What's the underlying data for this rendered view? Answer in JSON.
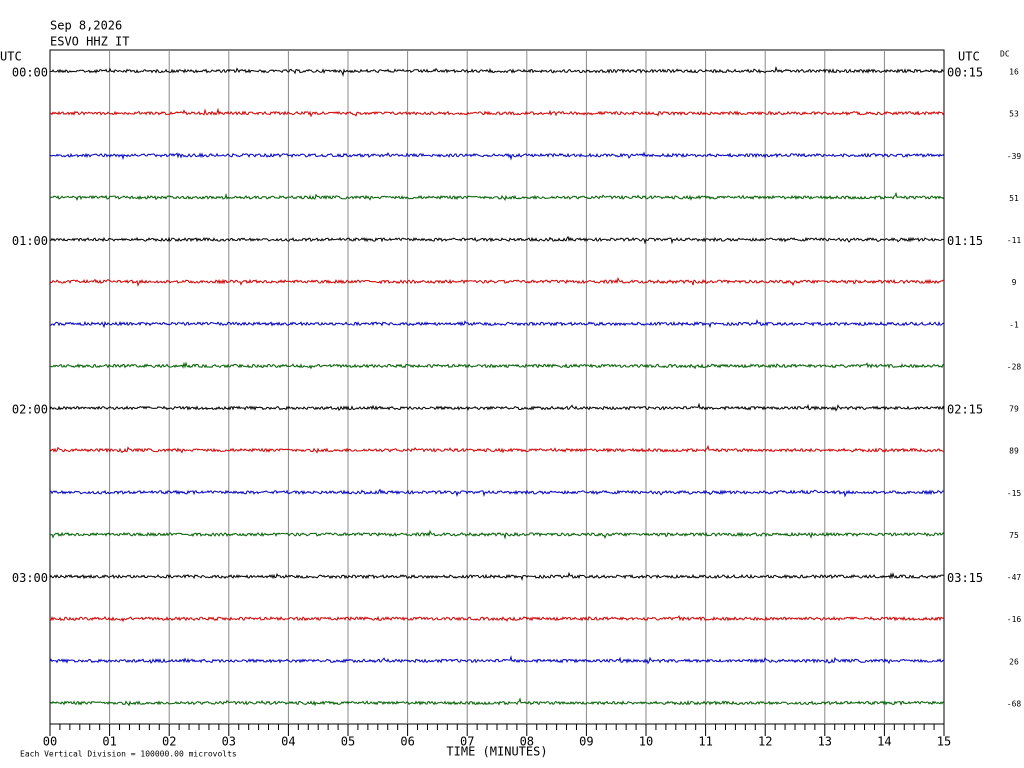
{
  "header": {
    "date": "Sep 8,2026",
    "station": "ESVO HHZ IT"
  },
  "left_axis": {
    "title": "UTC",
    "labels": [
      "00:00",
      "01:00",
      "02:00",
      "03:00"
    ]
  },
  "right_axis": {
    "title": "UTC",
    "labels": [
      "00:15",
      "01:15",
      "02:15",
      "03:15"
    ]
  },
  "dc": {
    "title": "DC",
    "values": [
      16,
      53,
      -39,
      51,
      -11,
      9,
      -1,
      -28,
      79,
      89,
      -15,
      75,
      -47,
      -16,
      26,
      -68
    ]
  },
  "trace_colors": [
    "#000000",
    "#d00000",
    "#0000c0",
    "#006000"
  ],
  "x_axis": {
    "ticks": [
      "00",
      "01",
      "02",
      "03",
      "04",
      "05",
      "06",
      "07",
      "08",
      "09",
      "10",
      "11",
      "12",
      "13",
      "14",
      "15"
    ],
    "label": "TIME (MINUTES)"
  },
  "footer": "Each Vertical Division = 100000.00 microvolts"
}
